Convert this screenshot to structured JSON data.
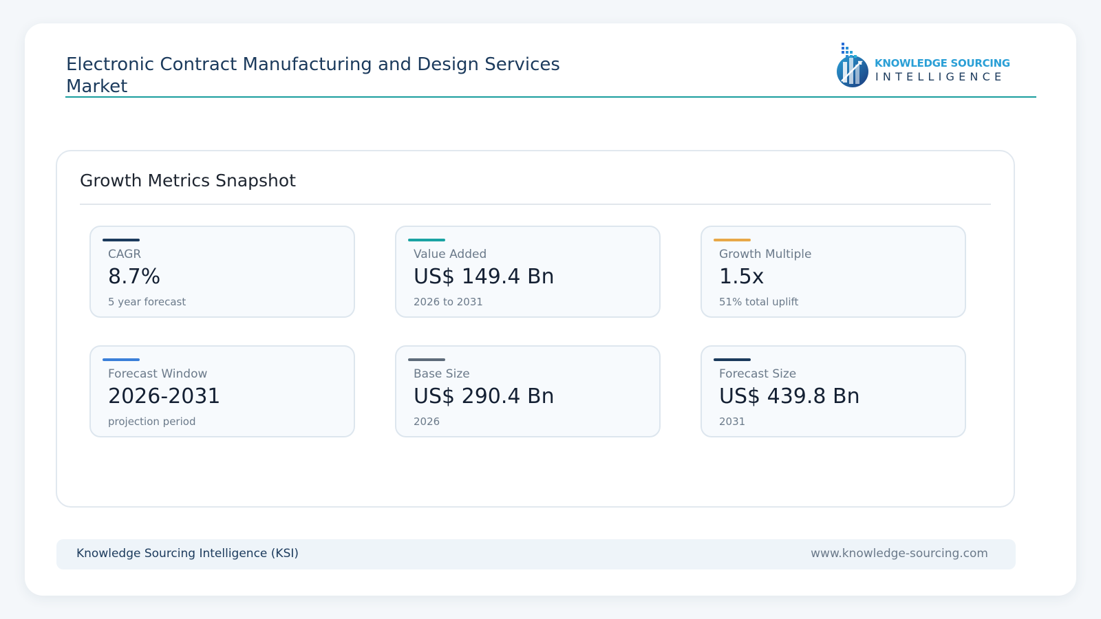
{
  "header": {
    "title": "Electronic Contract Manufacturing and Design Services Market",
    "logo": {
      "line1": "KNOWLEDGE SOURCING",
      "line2": "INTELLIGENCE"
    }
  },
  "panel": {
    "title": "Growth Metrics Snapshot",
    "cards": [
      {
        "label": "CAGR",
        "value": "8.7%",
        "note": "5 year forecast",
        "accent": "#1b3a5c"
      },
      {
        "label": "Value Added",
        "value": "US$ 149.4 Bn",
        "note": "2026 to 2031",
        "accent": "#1aa3a3"
      },
      {
        "label": "Growth Multiple",
        "value": "1.5x",
        "note": "51% total uplift",
        "accent": "#e8a848"
      },
      {
        "label": "Forecast Window",
        "value": "2026-2031",
        "note": "projection period",
        "accent": "#3a7fd9"
      },
      {
        "label": "Base Size",
        "value": "US$ 290.4 Bn",
        "note": "2026",
        "accent": "#5e6b7a"
      },
      {
        "label": "Forecast Size",
        "value": "US$ 439.8 Bn",
        "note": "2031",
        "accent": "#1b3a5c"
      }
    ]
  },
  "footer": {
    "left": "Knowledge Sourcing Intelligence (KSI)",
    "right": "www.knowledge-sourcing.com"
  }
}
